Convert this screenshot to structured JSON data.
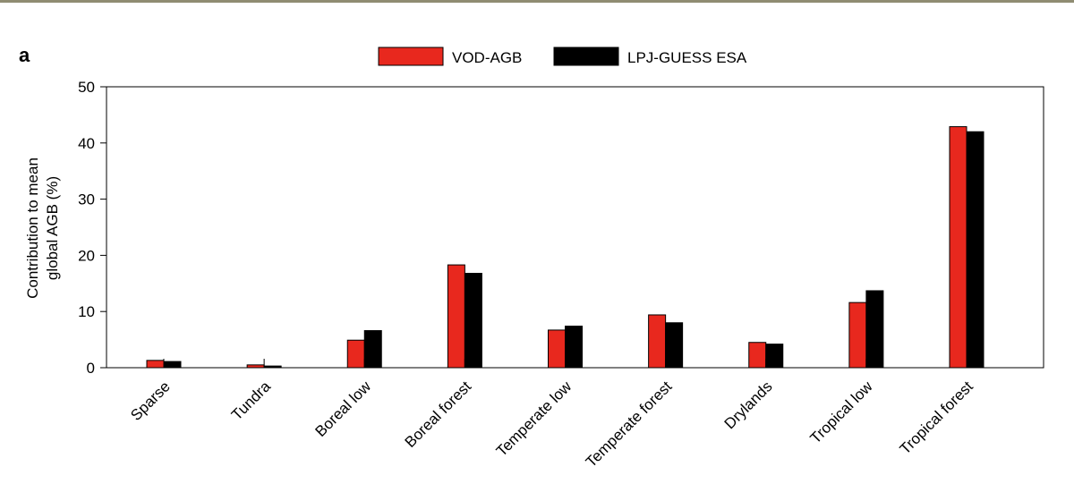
{
  "panel_label": "a",
  "colors": {
    "vod": "#e8281e",
    "lpj": "#000000"
  },
  "chart_data": {
    "type": "bar",
    "categories": [
      "Sparse",
      "Tundra",
      "Boreal low",
      "Boreal forest",
      "Temperate low",
      "Temperate forest",
      "Drylands",
      "Tropical low",
      "Tropical forest"
    ],
    "series": [
      {
        "name": "VOD-AGB",
        "values": [
          1.3,
          0.5,
          4.9,
          18.3,
          6.7,
          9.4,
          4.5,
          11.6,
          42.9
        ]
      },
      {
        "name": "LPJ-GUESS ESA",
        "values": [
          1.1,
          0.3,
          6.6,
          16.8,
          7.4,
          8.0,
          4.2,
          13.7,
          42.0
        ]
      }
    ],
    "ylabel_line1": "Contribution to mean",
    "ylabel_line2": "global AGB (%)",
    "ylim": [
      0,
      50
    ],
    "yticks": [
      "0",
      "10",
      "20",
      "30",
      "40",
      "50"
    ],
    "legend_position": "top-center",
    "grid": false
  }
}
